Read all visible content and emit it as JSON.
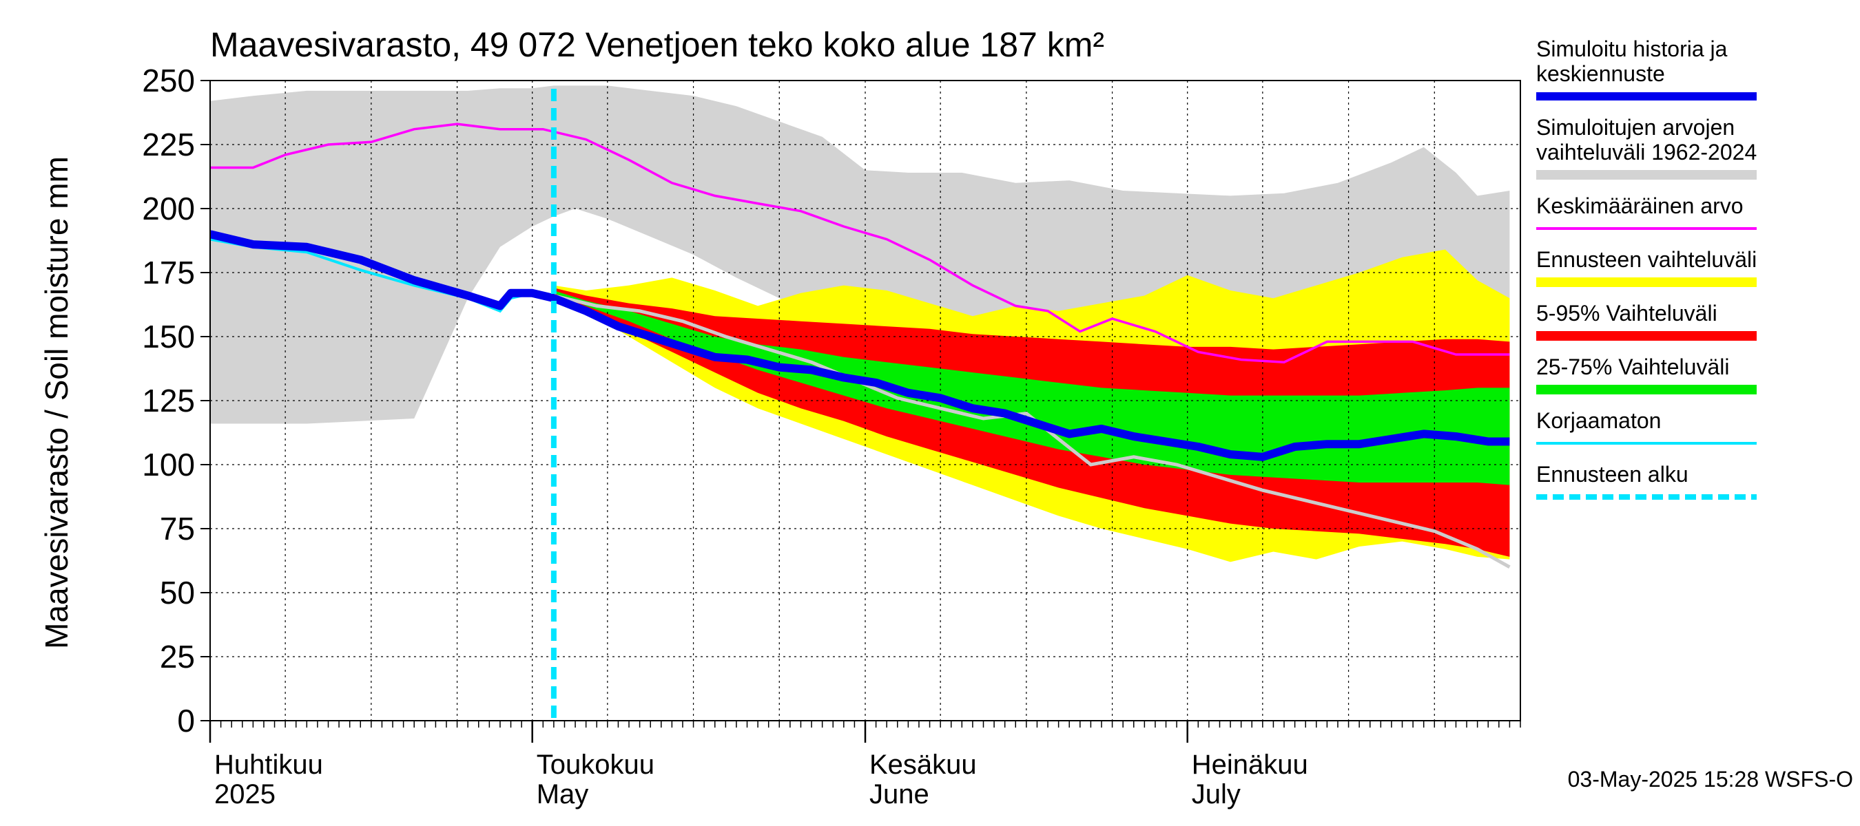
{
  "chart_data": {
    "type": "area",
    "title": "Maavesivarasto, 49 072 Venetjoen teko koko alue 187 km²",
    "ylabel": "Maavesivarasto / Soil moisture   mm",
    "ylim": [
      0,
      250
    ],
    "yticks": [
      "0",
      "25",
      "50",
      "75",
      "100",
      "125",
      "150",
      "175",
      "200",
      "225",
      "250"
    ],
    "xlim": [
      "2025-04-01",
      "2025-07-31"
    ],
    "month_labels": [
      {
        "date": "2025-04-01",
        "line1": "Huhtikuu",
        "line2": "2025"
      },
      {
        "date": "2025-05-01",
        "line1": "Toukokuu",
        "line2": "May"
      },
      {
        "date": "2025-06-01",
        "line1": "Kesäkuu",
        "line2": "June"
      },
      {
        "date": "2025-07-01",
        "line1": "Heinäkuu",
        "line2": "July"
      }
    ],
    "forecast_start": "2025-05-03",
    "grid": true,
    "footer": "03-May-2025 15:28 WSFS-O",
    "colors": {
      "history_range": "#d3d3d3",
      "forecast_range": "#ffff00",
      "p5_95": "#ff0000",
      "p25_75": "#00ee00",
      "mean": "#ff00ff",
      "main": "#0000ee",
      "uncorrected": "#00e5ff",
      "history_line": "#cccccc",
      "forecast_start": "#00e5ff"
    },
    "legend": [
      {
        "key": "main",
        "label": "Simuloitu historia ja keskiennuste",
        "style": "thick"
      },
      {
        "key": "history_range",
        "label": "Simuloitujen arvojen vaihteluväli 1962-2024",
        "style": "band"
      },
      {
        "key": "mean",
        "label": "Keskimääräinen arvo",
        "style": "thin"
      },
      {
        "key": "forecast_range",
        "label": "Ennusteen vaihteluväli",
        "style": "band"
      },
      {
        "key": "p5_95",
        "label": "5-95% Vaihteluväli",
        "style": "band"
      },
      {
        "key": "p25_75",
        "label": "25-75% Vaihteluväli",
        "style": "band"
      },
      {
        "key": "uncorrected",
        "label": "Korjaamaton",
        "style": "thin"
      },
      {
        "key": "forecast_start",
        "label": "Ennusteen alku",
        "style": "dashed"
      }
    ],
    "series": {
      "history_range": {
        "x": [
          "2025-04-01",
          "2025-04-05",
          "2025-04-10",
          "2025-04-15",
          "2025-04-20",
          "2025-04-25",
          "2025-04-28",
          "2025-05-01",
          "2025-05-03",
          "2025-05-05",
          "2025-05-08",
          "2025-05-12",
          "2025-05-16",
          "2025-05-20",
          "2025-05-24",
          "2025-05-28",
          "2025-06-01",
          "2025-06-05",
          "2025-06-10",
          "2025-06-15",
          "2025-06-20",
          "2025-06-25",
          "2025-06-30",
          "2025-07-05",
          "2025-07-10",
          "2025-07-15",
          "2025-07-20",
          "2025-07-23",
          "2025-07-26",
          "2025-07-28",
          "2025-07-31"
        ],
        "upper": [
          242,
          244,
          246,
          246,
          246,
          246,
          247,
          247,
          248,
          248,
          248,
          246,
          244,
          240,
          234,
          228,
          215,
          214,
          214,
          210,
          211,
          207,
          206,
          205,
          206,
          210,
          218,
          224,
          214,
          205,
          207
        ],
        "lower": [
          116,
          116,
          116,
          117,
          118,
          165,
          185,
          193,
          197,
          200,
          196,
          189,
          182,
          173,
          165,
          158,
          150,
          141,
          133,
          126,
          120,
          130,
          140,
          140,
          145,
          150,
          145,
          140,
          140,
          140,
          140
        ]
      },
      "forecast_range": {
        "x": [
          "2025-05-03",
          "2025-05-06",
          "2025-05-10",
          "2025-05-14",
          "2025-05-18",
          "2025-05-22",
          "2025-05-26",
          "2025-05-30",
          "2025-06-03",
          "2025-06-07",
          "2025-06-11",
          "2025-06-15",
          "2025-06-19",
          "2025-06-23",
          "2025-06-27",
          "2025-07-01",
          "2025-07-05",
          "2025-07-09",
          "2025-07-13",
          "2025-07-17",
          "2025-07-21",
          "2025-07-25",
          "2025-07-28",
          "2025-07-31"
        ],
        "upper": [
          170,
          168,
          170,
          173,
          168,
          162,
          167,
          170,
          168,
          163,
          158,
          162,
          160,
          163,
          166,
          174,
          168,
          165,
          170,
          175,
          181,
          184,
          172,
          165
        ],
        "lower": [
          166,
          160,
          150,
          140,
          130,
          122,
          116,
          110,
          104,
          98,
          92,
          86,
          80,
          75,
          71,
          67,
          62,
          66,
          63,
          68,
          70,
          67,
          64,
          63
        ]
      },
      "p5_95": {
        "x": [
          "2025-05-03",
          "2025-05-06",
          "2025-05-10",
          "2025-05-14",
          "2025-05-18",
          "2025-05-22",
          "2025-05-26",
          "2025-05-30",
          "2025-06-03",
          "2025-06-07",
          "2025-06-11",
          "2025-06-15",
          "2025-06-19",
          "2025-06-23",
          "2025-06-27",
          "2025-07-01",
          "2025-07-05",
          "2025-07-09",
          "2025-07-13",
          "2025-07-17",
          "2025-07-21",
          "2025-07-25",
          "2025-07-28",
          "2025-07-31"
        ],
        "upper": [
          169,
          166,
          163,
          161,
          158,
          157,
          156,
          155,
          154,
          153,
          151,
          150,
          149,
          148,
          147,
          146,
          146,
          145,
          146,
          147,
          148,
          149,
          149,
          148
        ],
        "lower": [
          167,
          160,
          152,
          144,
          136,
          128,
          122,
          117,
          111,
          106,
          101,
          96,
          91,
          87,
          83,
          80,
          77,
          75,
          74,
          73,
          71,
          69,
          67,
          64
        ]
      },
      "p25_75": {
        "x": [
          "2025-05-03",
          "2025-05-06",
          "2025-05-10",
          "2025-05-14",
          "2025-05-18",
          "2025-05-22",
          "2025-05-26",
          "2025-05-30",
          "2025-06-03",
          "2025-06-07",
          "2025-06-11",
          "2025-06-15",
          "2025-06-19",
          "2025-06-23",
          "2025-06-27",
          "2025-07-01",
          "2025-07-05",
          "2025-07-09",
          "2025-07-13",
          "2025-07-17",
          "2025-07-21",
          "2025-07-25",
          "2025-07-28",
          "2025-07-31"
        ],
        "upper": [
          168,
          164,
          160,
          155,
          150,
          147,
          145,
          142,
          140,
          138,
          136,
          134,
          132,
          130,
          129,
          128,
          127,
          127,
          127,
          127,
          128,
          129,
          130,
          130
        ],
        "lower": [
          167,
          162,
          156,
          149,
          143,
          137,
          132,
          127,
          122,
          118,
          114,
          110,
          106,
          103,
          100,
          98,
          96,
          95,
          94,
          93,
          93,
          93,
          93,
          92
        ]
      },
      "mean": {
        "x": [
          "2025-04-01",
          "2025-04-05",
          "2025-04-08",
          "2025-04-12",
          "2025-04-16",
          "2025-04-20",
          "2025-04-24",
          "2025-04-28",
          "2025-05-02",
          "2025-05-06",
          "2025-05-10",
          "2025-05-14",
          "2025-05-18",
          "2025-05-22",
          "2025-05-26",
          "2025-05-30",
          "2025-06-03",
          "2025-06-07",
          "2025-06-11",
          "2025-06-15",
          "2025-06-18",
          "2025-06-21",
          "2025-06-24",
          "2025-06-28",
          "2025-07-02",
          "2025-07-06",
          "2025-07-10",
          "2025-07-14",
          "2025-07-18",
          "2025-07-22",
          "2025-07-26",
          "2025-07-31"
        ],
        "values": [
          216,
          216,
          221,
          225,
          226,
          231,
          233,
          231,
          231,
          227,
          219,
          210,
          205,
          202,
          199,
          193,
          188,
          180,
          170,
          162,
          160,
          152,
          157,
          152,
          144,
          141,
          140,
          148,
          148,
          148,
          143,
          143
        ]
      },
      "main": {
        "x": [
          "2025-04-01",
          "2025-04-05",
          "2025-04-10",
          "2025-04-15",
          "2025-04-20",
          "2025-04-25",
          "2025-04-28",
          "2025-04-29",
          "2025-04-30",
          "2025-05-01",
          "2025-05-03",
          "2025-05-06",
          "2025-05-09",
          "2025-05-12",
          "2025-05-15",
          "2025-05-18",
          "2025-05-21",
          "2025-05-24",
          "2025-05-27",
          "2025-05-30",
          "2025-06-02",
          "2025-06-05",
          "2025-06-08",
          "2025-06-11",
          "2025-06-14",
          "2025-06-17",
          "2025-06-20",
          "2025-06-23",
          "2025-06-26",
          "2025-06-29",
          "2025-07-02",
          "2025-07-05",
          "2025-07-08",
          "2025-07-11",
          "2025-07-14",
          "2025-07-17",
          "2025-07-20",
          "2025-07-23",
          "2025-07-26",
          "2025-07-29",
          "2025-07-31"
        ],
        "values": [
          190,
          186,
          185,
          180,
          172,
          166,
          162,
          167,
          167,
          167,
          165,
          160,
          154,
          150,
          146,
          142,
          141,
          138,
          137,
          134,
          132,
          128,
          126,
          122,
          120,
          116,
          112,
          114,
          111,
          109,
          107,
          104,
          103,
          107,
          108,
          108,
          110,
          112,
          111,
          109,
          109
        ]
      },
      "uncorrected": {
        "x": [
          "2025-04-01",
          "2025-04-05",
          "2025-04-10",
          "2025-04-15",
          "2025-04-20",
          "2025-04-25",
          "2025-04-28",
          "2025-04-29",
          "2025-04-30",
          "2025-05-01"
        ],
        "values": [
          188,
          185,
          183,
          176,
          170,
          165,
          160,
          165,
          166,
          166
        ]
      },
      "history_line": {
        "x": [
          "2025-05-03",
          "2025-05-07",
          "2025-05-11",
          "2025-05-15",
          "2025-05-19",
          "2025-05-23",
          "2025-05-27",
          "2025-05-31",
          "2025-06-04",
          "2025-06-08",
          "2025-06-12",
          "2025-06-16",
          "2025-06-19",
          "2025-06-22",
          "2025-06-26",
          "2025-06-30",
          "2025-07-04",
          "2025-07-08",
          "2025-07-12",
          "2025-07-16",
          "2025-07-20",
          "2025-07-24",
          "2025-07-28",
          "2025-07-31"
        ],
        "values": [
          166,
          162,
          160,
          156,
          150,
          145,
          140,
          133,
          126,
          122,
          118,
          120,
          110,
          100,
          103,
          100,
          95,
          90,
          86,
          82,
          78,
          74,
          67,
          60
        ]
      }
    }
  }
}
